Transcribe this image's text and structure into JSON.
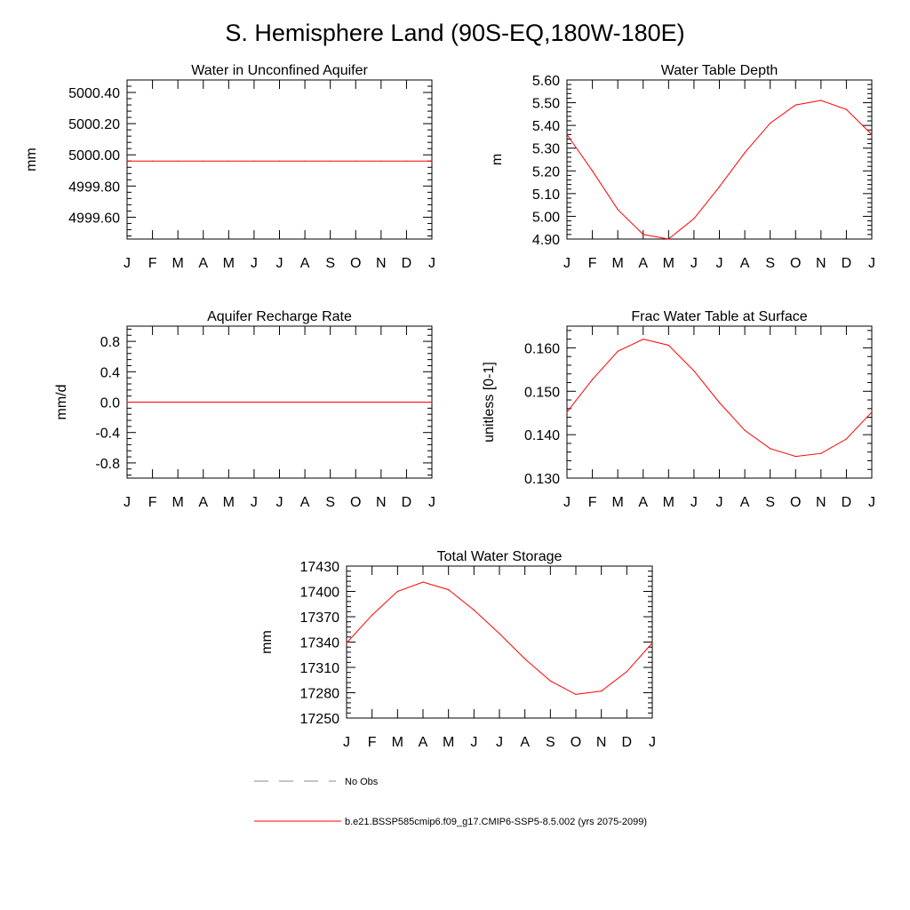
{
  "figure": {
    "title": "S. Hemisphere Land (90S-EQ,180W-180E)"
  },
  "legend": {
    "entries": [
      {
        "label": "No Obs",
        "color": "#888888",
        "style": "dashed"
      },
      {
        "label": "b.e21.BSSP585cmip6.f09_g17.CMIP6-SSP5-8.5.002 (yrs 2075-2099)",
        "color": "#ff0000",
        "style": "solid"
      }
    ]
  },
  "chart_data": [
    {
      "type": "line",
      "title": "Water in Unconfined Aquifer",
      "ylabel": "mm",
      "x": [
        "J",
        "F",
        "M",
        "A",
        "M",
        "J",
        "J",
        "A",
        "S",
        "O",
        "N",
        "D",
        "J"
      ],
      "ylim": [
        4999.46,
        5000.48
      ],
      "yticks": [
        "5000.40",
        "5000.20",
        "5000.00",
        "4999.80",
        "4999.60"
      ],
      "yticks_values": [
        5000.4,
        5000.2,
        5000.0,
        4999.8,
        4999.6
      ],
      "series": [
        {
          "color": "#ff0000",
          "values": [
            4999.96,
            4999.96,
            4999.96,
            4999.96,
            4999.96,
            4999.96,
            4999.96,
            4999.96,
            4999.96,
            4999.96,
            4999.96,
            4999.96,
            4999.96
          ]
        }
      ]
    },
    {
      "type": "line",
      "title": "Water Table Depth",
      "ylabel": "m",
      "x": [
        "J",
        "F",
        "M",
        "A",
        "M",
        "J",
        "J",
        "A",
        "S",
        "O",
        "N",
        "D",
        "J"
      ],
      "ylim": [
        4.9,
        5.6
      ],
      "yticks": [
        "5.60",
        "5.50",
        "5.40",
        "5.30",
        "5.20",
        "5.10",
        "5.00",
        "4.90"
      ],
      "yticks_values": [
        5.6,
        5.5,
        5.4,
        5.3,
        5.2,
        5.1,
        5.0,
        4.9
      ],
      "series": [
        {
          "color": "#ff0000",
          "values": [
            5.36,
            5.2,
            5.03,
            4.92,
            4.9,
            4.99,
            5.13,
            5.28,
            5.41,
            5.49,
            5.51,
            5.47,
            5.36
          ]
        }
      ]
    },
    {
      "type": "line",
      "title": "Aquifer Recharge Rate",
      "ylabel": "mm/d",
      "x": [
        "J",
        "F",
        "M",
        "A",
        "M",
        "J",
        "J",
        "A",
        "S",
        "O",
        "N",
        "D",
        "J"
      ],
      "ylim": [
        -1.0,
        1.0
      ],
      "yticks": [
        "0.8",
        "0.4",
        "0.0",
        "-0.4",
        "-0.8"
      ],
      "yticks_values": [
        0.8,
        0.4,
        0.0,
        -0.4,
        -0.8
      ],
      "series": [
        {
          "color": "#ff0000",
          "values": [
            0,
            0,
            0,
            0,
            0,
            0,
            0,
            0,
            0,
            0,
            0,
            0,
            0
          ]
        }
      ]
    },
    {
      "type": "line",
      "title": "Frac Water Table at Surface",
      "ylabel": "unitless [0-1]",
      "x": [
        "J",
        "F",
        "M",
        "A",
        "M",
        "J",
        "J",
        "A",
        "S",
        "O",
        "N",
        "D",
        "J"
      ],
      "ylim": [
        0.13,
        0.165
      ],
      "yticks": [
        "0.160",
        "0.150",
        "0.140",
        "0.130"
      ],
      "yticks_values": [
        0.16,
        0.15,
        0.14,
        0.13
      ],
      "series": [
        {
          "color": "#ff0000",
          "values": [
            0.1452,
            0.1527,
            0.1592,
            0.162,
            0.1606,
            0.1547,
            0.1474,
            0.141,
            0.1368,
            0.135,
            0.1357,
            0.139,
            0.1452
          ]
        }
      ]
    },
    {
      "type": "line",
      "title": "Total Water Storage",
      "ylabel": "mm",
      "x": [
        "J",
        "F",
        "M",
        "A",
        "M",
        "J",
        "J",
        "A",
        "S",
        "O",
        "N",
        "D",
        "J"
      ],
      "ylim": [
        17250,
        17430
      ],
      "yticks": [
        "17430",
        "17400",
        "17370",
        "17340",
        "17310",
        "17280",
        "17250"
      ],
      "yticks_values": [
        17430,
        17400,
        17370,
        17340,
        17310,
        17280,
        17250
      ],
      "series": [
        {
          "color": "#ff0000",
          "values": [
            17339,
            17372,
            17400,
            17411,
            17402,
            17378,
            17350,
            17320,
            17294,
            17278,
            17282,
            17305,
            17339
          ]
        }
      ]
    }
  ]
}
